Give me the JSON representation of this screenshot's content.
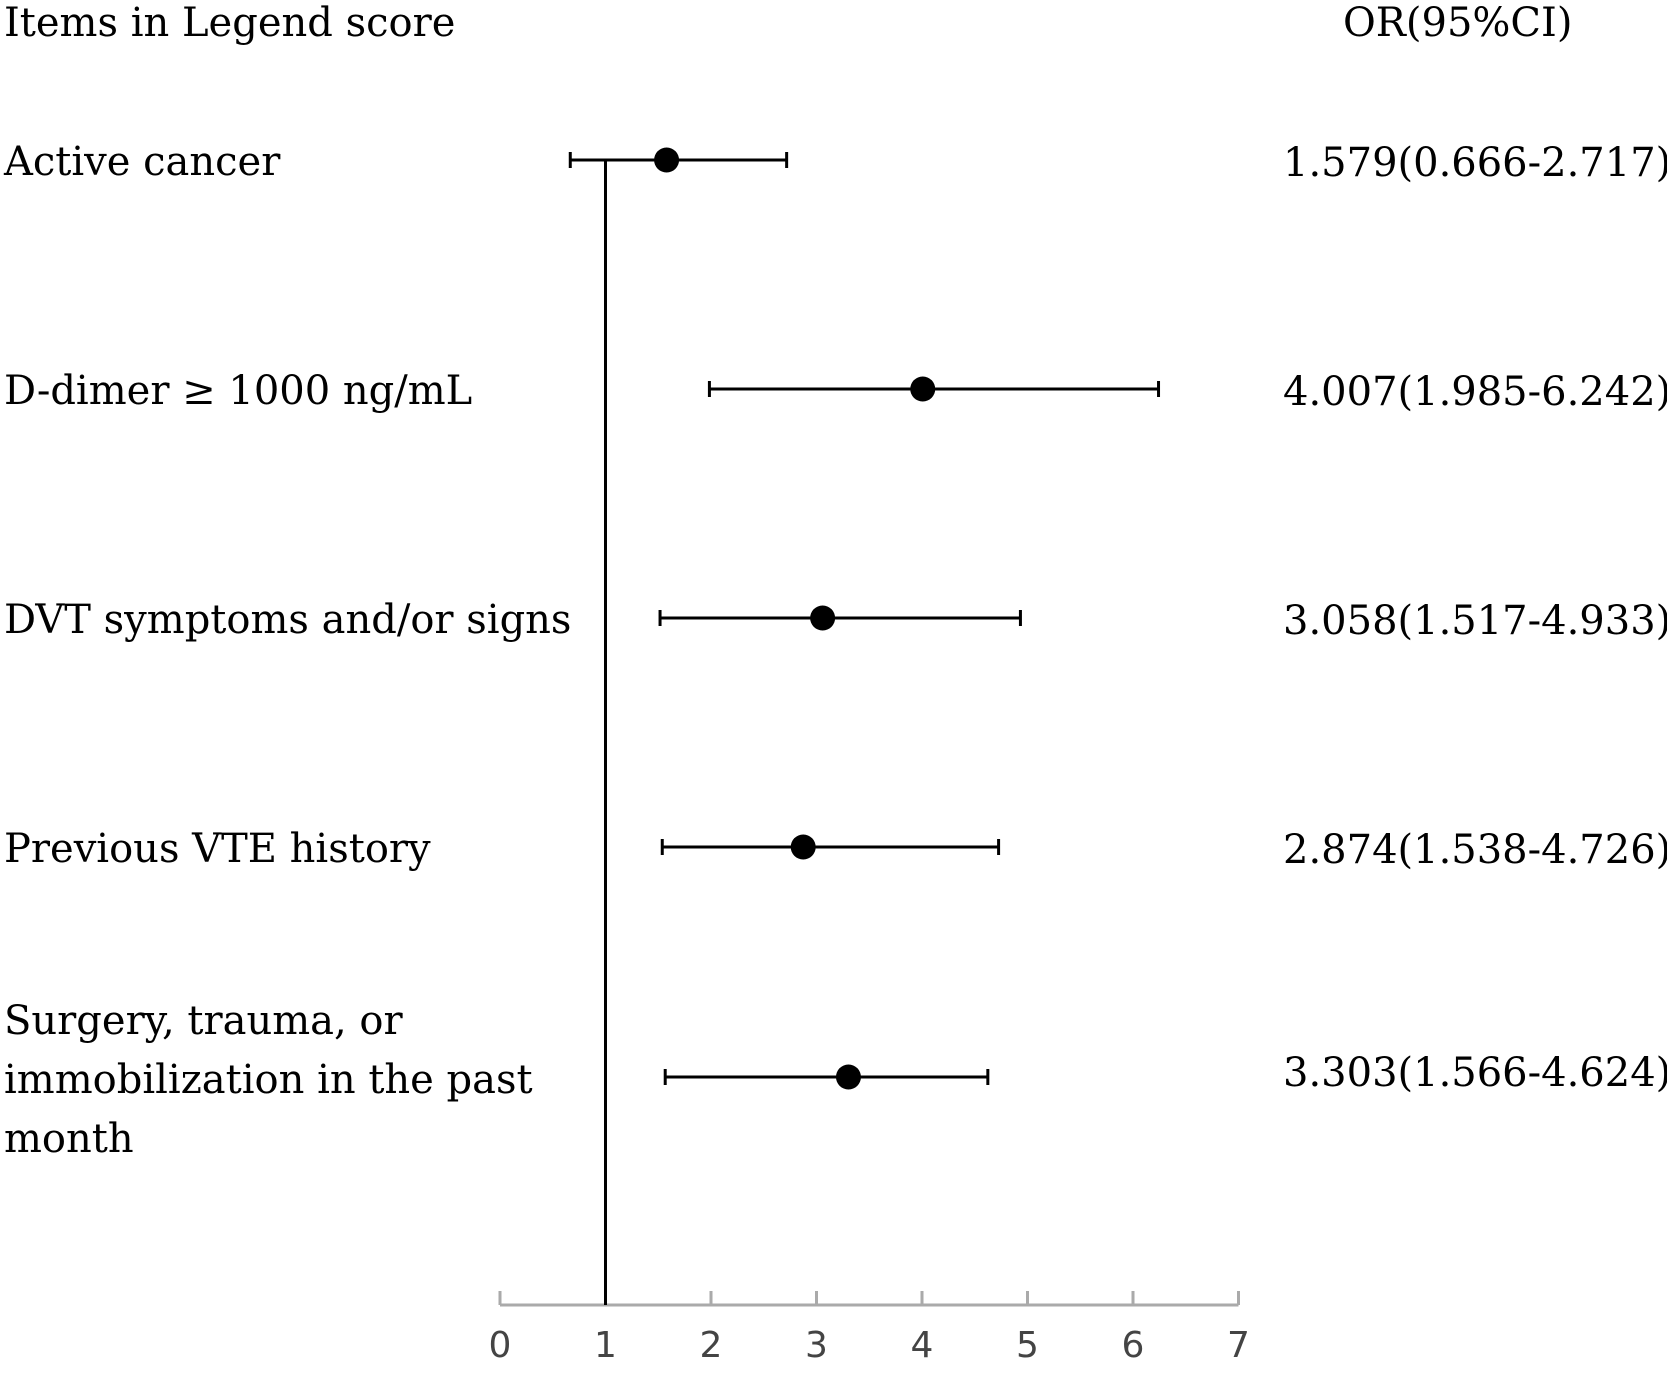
{
  "header": {
    "left": "Items in Legend score",
    "right": "OR(95%CI)"
  },
  "chart_data": {
    "type": "forest",
    "reference_line": 1,
    "xlim": [
      0,
      7
    ],
    "x_ticks": [
      "0",
      "1",
      "2",
      "3",
      "4",
      "5",
      "6",
      "7"
    ],
    "rows": [
      {
        "label": "Active cancer",
        "or": 1.579,
        "lower": 0.666,
        "upper": 2.717,
        "ci_text": "1.579(0.666-2.717)"
      },
      {
        "label": "D-dimer ≥ 1000 ng/mL",
        "or": 4.007,
        "lower": 1.985,
        "upper": 6.242,
        "ci_text": "4.007(1.985-6.242)"
      },
      {
        "label": "DVT symptoms and/or signs",
        "or": 3.058,
        "lower": 1.517,
        "upper": 4.933,
        "ci_text": "3.058(1.517-4.933)"
      },
      {
        "label": "Previous VTE history",
        "or": 2.874,
        "lower": 1.538,
        "upper": 4.726,
        "ci_text": "2.874(1.538-4.726)"
      },
      {
        "label": "Surgery, trauma, or\nimmobilization in the past\nmonth",
        "or": 3.303,
        "lower": 1.566,
        "upper": 4.624,
        "ci_text": "3.303(1.566-4.624)"
      }
    ]
  }
}
